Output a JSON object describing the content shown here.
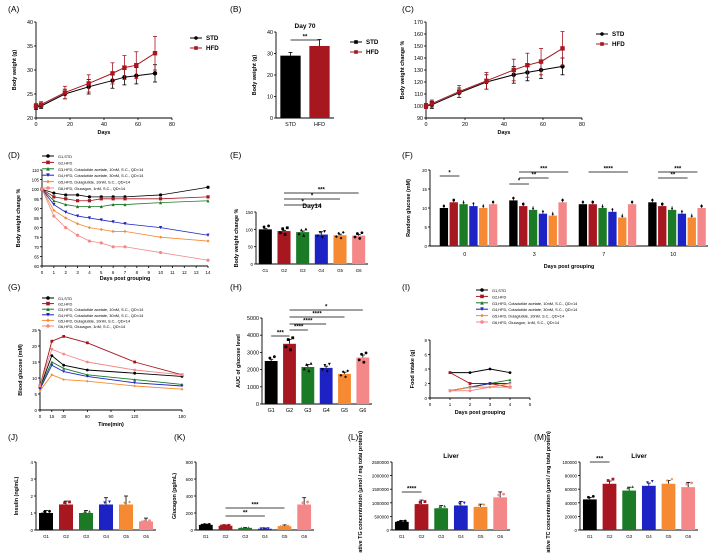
{
  "figure": {
    "panel_letters": [
      "(A)",
      "(B)",
      "(C)",
      "(D)",
      "(E)",
      "(F)",
      "(G)",
      "(H)",
      "(I)",
      "(J)",
      "(K)",
      "(L)",
      "(M)"
    ]
  },
  "colors": {
    "STD": "#000000",
    "HFD": "#a8161f",
    "G1": "#000000",
    "G2": "#a8161f",
    "G3": "#1a7a25",
    "G4": "#1c22c4",
    "G5": "#f58a32",
    "G6": "#f48888"
  },
  "chart_data": [
    {
      "panel": "A",
      "type": "line",
      "xlabel": "Days",
      "ylabel": "Body weight (g)",
      "xlim": [
        0,
        80
      ],
      "ylim": [
        20,
        40
      ],
      "xticks": [
        0,
        20,
        40,
        60,
        80
      ],
      "yticks": [
        20,
        25,
        30,
        35,
        40
      ],
      "legend": [
        "STD",
        "HFD"
      ],
      "series": [
        {
          "name": "STD",
          "x": [
            0,
            3,
            17,
            31,
            45,
            52,
            59,
            70
          ],
          "y": [
            22.3,
            22.5,
            25.0,
            26.5,
            27.8,
            28.5,
            28.8,
            29.3
          ],
          "err": [
            0.5,
            0.5,
            1.0,
            1.5,
            1.6,
            1.6,
            1.7,
            1.8
          ]
        },
        {
          "name": "HFD",
          "x": [
            0,
            3,
            17,
            31,
            45,
            52,
            59,
            70
          ],
          "y": [
            22.5,
            22.8,
            25.3,
            27.2,
            29.3,
            30.5,
            31.0,
            33.5
          ],
          "err": [
            0.5,
            0.6,
            1.3,
            1.8,
            2.2,
            2.5,
            2.8,
            3.5
          ]
        }
      ]
    },
    {
      "panel": "B",
      "type": "bar",
      "title": "Day 70",
      "ylabel": "Body weight (g)",
      "ylim": [
        0,
        40
      ],
      "yticks": [
        0,
        10,
        20,
        30,
        40
      ],
      "categories": [
        "STD",
        "HFD"
      ],
      "values": [
        29,
        33.5
      ],
      "err": [
        1.5,
        3
      ],
      "legend": [
        "STD",
        "HFD"
      ],
      "significance": [
        {
          "pair": [
            "STD",
            "HFD"
          ],
          "label": "**"
        }
      ]
    },
    {
      "panel": "C",
      "type": "line",
      "xlabel": "Days",
      "ylabel": "Body weight change %",
      "xlim": [
        0,
        80
      ],
      "ylim": [
        90,
        170
      ],
      "xticks": [
        0,
        20,
        40,
        60,
        80
      ],
      "yticks": [
        90,
        100,
        110,
        120,
        130,
        140,
        150,
        160,
        170
      ],
      "legend": [
        "STD",
        "HFD"
      ],
      "series": [
        {
          "name": "STD",
          "x": [
            0,
            3,
            17,
            31,
            45,
            52,
            59,
            70
          ],
          "y": [
            100,
            101,
            111,
            120,
            126,
            128,
            130,
            133
          ],
          "err": [
            2,
            3,
            4,
            6,
            7,
            7,
            7,
            7
          ]
        },
        {
          "name": "HFD",
          "x": [
            0,
            3,
            17,
            31,
            45,
            52,
            59,
            70
          ],
          "y": [
            100,
            102,
            112,
            121,
            130,
            134,
            137,
            148
          ],
          "err": [
            2,
            3,
            5,
            7,
            9,
            10,
            11,
            14
          ]
        }
      ]
    },
    {
      "panel": "D",
      "type": "line",
      "xlabel": "Days post grouping",
      "ylabel": "Body weight change %",
      "xlim": [
        0,
        14
      ],
      "ylim": [
        60,
        110
      ],
      "xticks": [
        0,
        1,
        2,
        3,
        4,
        5,
        6,
        7,
        8,
        9,
        10,
        11,
        12,
        13,
        14
      ],
      "yticks": [
        60,
        65,
        70,
        75,
        80,
        85,
        90,
        95,
        100,
        105,
        110
      ],
      "legend": [
        "G1,STD",
        "G2,HFD",
        "G3,HFD, Cotadutide acetate, 10nM, S.C., QD×14",
        "G4,HFD, Cotadutide acetate, 30nM, S.C., QD×14",
        "G5,HFD, Dulaglutide, 10nM, S.C., QD×14",
        "G6,HFD, Glucagon, 1nM, S.C., QD×14"
      ],
      "series": [
        {
          "name": "G1",
          "x": [
            0,
            1,
            2,
            3,
            4,
            5,
            6,
            7,
            10,
            14
          ],
          "y": [
            100,
            98,
            97,
            97,
            96,
            96,
            96,
            96,
            97,
            101
          ]
        },
        {
          "name": "G2",
          "x": [
            0,
            1,
            2,
            3,
            4,
            5,
            6,
            7,
            10,
            14
          ],
          "y": [
            100,
            96,
            95,
            94,
            94,
            95,
            95,
            95,
            95,
            96
          ]
        },
        {
          "name": "G3",
          "x": [
            0,
            1,
            2,
            3,
            4,
            5,
            6,
            7,
            10,
            14
          ],
          "y": [
            100,
            94,
            92,
            91,
            91,
            91,
            92,
            92,
            93,
            94
          ]
        },
        {
          "name": "G4",
          "x": [
            0,
            1,
            2,
            3,
            4,
            5,
            6,
            7,
            10,
            14
          ],
          "y": [
            100,
            92,
            88,
            86,
            85,
            84,
            83,
            82,
            80,
            76
          ]
        },
        {
          "name": "G5",
          "x": [
            0,
            1,
            2,
            3,
            4,
            5,
            6,
            7,
            10,
            14
          ],
          "y": [
            100,
            89,
            85,
            82,
            80,
            79,
            78,
            78,
            75,
            73
          ]
        },
        {
          "name": "G6",
          "x": [
            0,
            1,
            2,
            3,
            4,
            5,
            6,
            7,
            10,
            14
          ],
          "y": [
            100,
            86,
            80,
            76,
            73,
            72,
            70,
            70,
            67,
            63
          ]
        }
      ]
    },
    {
      "panel": "E",
      "type": "bar",
      "title": "Day14",
      "ylabel": "Body weight change %",
      "ylim": [
        0,
        150
      ],
      "yticks": [
        0,
        50,
        100,
        150
      ],
      "categories": [
        "G1",
        "G2",
        "G3",
        "G4",
        "G5",
        "G6"
      ],
      "values": [
        100,
        95,
        92,
        85,
        83,
        82
      ],
      "err": [
        2,
        2,
        3,
        8,
        3,
        3
      ],
      "significance": [
        {
          "pair": [
            "G2",
            "G4"
          ],
          "label": "*"
        },
        {
          "pair": [
            "G2",
            "G5"
          ],
          "label": "*"
        },
        {
          "pair": [
            "G2",
            "G6"
          ],
          "label": "***"
        }
      ]
    },
    {
      "panel": "F",
      "type": "bar",
      "xlabel": "Days post grouping",
      "ylabel": "Random glucose (mM)",
      "ylim": [
        0,
        20
      ],
      "yticks": [
        0,
        5,
        10,
        15,
        20
      ],
      "categories": [
        "0",
        "3",
        "7",
        "10"
      ],
      "series": [
        {
          "name": "G1",
          "values": [
            10,
            12,
            11,
            11.5
          ]
        },
        {
          "name": "G2",
          "values": [
            11.5,
            10.5,
            11,
            10.5
          ]
        },
        {
          "name": "G3",
          "values": [
            11,
            9.5,
            10,
            9.5
          ]
        },
        {
          "name": "G4",
          "values": [
            10.5,
            8.5,
            9,
            8.5
          ]
        },
        {
          "name": "G5",
          "values": [
            10,
            8,
            7.5,
            7.5
          ]
        },
        {
          "name": "G6",
          "values": [
            11,
            11.5,
            11,
            10
          ]
        }
      ],
      "significance": [
        {
          "group": "0",
          "label": "*"
        },
        {
          "group": "3",
          "label": "*"
        },
        {
          "group": "3",
          "label": "**"
        },
        {
          "group": "3",
          "label": "***"
        },
        {
          "group": "7",
          "label": "****"
        },
        {
          "group": "10",
          "label": "**"
        },
        {
          "group": "10",
          "label": "***"
        }
      ]
    },
    {
      "panel": "G",
      "type": "line",
      "xlabel": "Time(min)",
      "ylabel": "Blood glucose (mM)",
      "xlim": [
        0,
        180
      ],
      "ylim": [
        0,
        25
      ],
      "xticks": [
        0,
        15,
        30,
        60,
        90,
        120,
        180
      ],
      "yticks": [
        0,
        5,
        10,
        15,
        20,
        25
      ],
      "legend": [
        "G1,STD",
        "G2,HFD",
        "G3,HFD, Cotadutide acetate, 10nM, S.C., QD×14",
        "G4,HFD, Cotadutide acetate, 30nM, S.C., QD×14",
        "G5,HFD, Dulaglutide, 10nM, S.C., QD×14",
        "G6,HFD, Glucagon, 1nM, S.C., QD×14"
      ],
      "series": [
        {
          "name": "G1",
          "x": [
            0,
            15,
            30,
            60,
            120,
            180
          ],
          "y": [
            7,
            17,
            14,
            12.5,
            11.5,
            10.5
          ]
        },
        {
          "name": "G2",
          "x": [
            0,
            15,
            30,
            60,
            120,
            180
          ],
          "y": [
            7.5,
            21.5,
            23,
            21,
            15,
            11
          ]
        },
        {
          "name": "G3",
          "x": [
            0,
            15,
            30,
            60,
            120,
            180
          ],
          "y": [
            7,
            15,
            13,
            11,
            9.5,
            8
          ]
        },
        {
          "name": "G4",
          "x": [
            0,
            15,
            30,
            60,
            120,
            180
          ],
          "y": [
            6.5,
            14,
            12,
            10.5,
            8.5,
            7.5
          ]
        },
        {
          "name": "G5",
          "x": [
            0,
            15,
            30,
            60,
            120,
            180
          ],
          "y": [
            6,
            11,
            9.5,
            9,
            7.5,
            6.5
          ]
        },
        {
          "name": "G6",
          "x": [
            0,
            15,
            30,
            60,
            120,
            180
          ],
          "y": [
            7.5,
            19,
            17.5,
            15,
            12.5,
            11
          ]
        }
      ]
    },
    {
      "panel": "H",
      "type": "bar",
      "ylabel": "AUC of glucose level",
      "ylim": [
        0,
        5000
      ],
      "yticks": [
        0,
        1000,
        2000,
        3000,
        4000,
        5000
      ],
      "categories": [
        "G1",
        "G2",
        "G3",
        "G4",
        "G5",
        "G6"
      ],
      "values": [
        2500,
        3500,
        2150,
        2100,
        1750,
        2700
      ],
      "err": [
        100,
        250,
        150,
        100,
        100,
        150
      ],
      "significance": [
        {
          "pair": [
            "G1",
            "G2"
          ],
          "label": "***"
        },
        {
          "pair": [
            "G2",
            "G3"
          ],
          "label": "****"
        },
        {
          "pair": [
            "G2",
            "G4"
          ],
          "label": "****"
        },
        {
          "pair": [
            "G2",
            "G5"
          ],
          "label": "****"
        },
        {
          "pair": [
            "G2",
            "G6"
          ],
          "label": "*"
        }
      ]
    },
    {
      "panel": "I",
      "type": "line",
      "xlabel": "Days post grouping",
      "ylabel": "Food intake (g)",
      "xlim": [
        0,
        5
      ],
      "ylim": [
        0,
        8
      ],
      "xticks": [
        0,
        1,
        2,
        3,
        4,
        5
      ],
      "yticks": [
        0,
        2,
        4,
        6,
        8
      ],
      "legend": [
        "G1,STD",
        "G2,HFD",
        "G3,HFD, Cotadutide acetate, 10nM, S.C., QD×14",
        "G4,HFD, Cotadutide acetate, 30nM, S.C., QD×14",
        "G5,HFD, Dulaglutide, 10nM, S.C., QD×14",
        "G6,HFD, Glucagon, 1nM, S.C., QD×14"
      ],
      "series": [
        {
          "name": "G1",
          "x": [
            1,
            2,
            3,
            4
          ],
          "y": [
            3.5,
            3.5,
            4,
            3.5
          ]
        },
        {
          "name": "G2",
          "x": [
            1,
            2,
            3,
            4
          ],
          "y": [
            3.5,
            2,
            2,
            1.5
          ]
        },
        {
          "name": "G3",
          "x": [
            1,
            2,
            3,
            4
          ],
          "y": [
            1,
            1.5,
            2,
            2.5
          ]
        },
        {
          "name": "G4",
          "x": [
            1,
            2,
            3,
            4
          ],
          "y": [
            1,
            1.5,
            2,
            2
          ]
        },
        {
          "name": "G5",
          "x": [
            1,
            2,
            3,
            4
          ],
          "y": [
            1,
            1.5,
            1.5,
            2
          ]
        },
        {
          "name": "G6",
          "x": [
            1,
            2,
            3,
            4
          ],
          "y": [
            1,
            1,
            1.5,
            1.5
          ]
        }
      ]
    },
    {
      "panel": "J",
      "type": "bar",
      "ylabel": "Insulin (ng/mL)",
      "ylim": [
        0,
        4
      ],
      "yticks": [
        0,
        1,
        2,
        3,
        4
      ],
      "categories": [
        "G1",
        "G2",
        "G3",
        "G4",
        "G5",
        "G6"
      ],
      "values": [
        1.0,
        1.5,
        1.0,
        1.5,
        1.5,
        0.5
      ],
      "err": [
        0.15,
        0.2,
        0.15,
        0.4,
        0.5,
        0.2
      ]
    },
    {
      "panel": "K",
      "type": "bar",
      "ylabel": "Glucagon (pg/mL)",
      "ylim": [
        0,
        800
      ],
      "yticks": [
        0,
        200,
        400,
        600,
        800
      ],
      "categories": [
        "G1",
        "G2",
        "G3",
        "G4",
        "G5",
        "G6"
      ],
      "values": [
        60,
        50,
        25,
        15,
        45,
        300
      ],
      "err": [
        10,
        8,
        5,
        5,
        15,
        80
      ],
      "significance": [
        {
          "pair": [
            "G2",
            "G4"
          ],
          "label": "**"
        },
        {
          "pair": [
            "G2",
            "G5"
          ],
          "label": "***"
        }
      ]
    },
    {
      "panel": "L",
      "type": "bar",
      "title": "Liver",
      "ylabel": "Relative TG concentration (μmol / mg total protein)",
      "ylim": [
        0,
        2500000
      ],
      "yticks": [
        0,
        500000,
        1000000,
        1500000,
        2000000,
        2500000
      ],
      "categories": [
        "G1",
        "G2",
        "G3",
        "G4",
        "G5",
        "G6"
      ],
      "values": [
        300000,
        950000,
        800000,
        900000,
        850000,
        1200000
      ],
      "err": [
        50000,
        150000,
        100000,
        150000,
        100000,
        200000
      ],
      "significance": [
        {
          "pair": [
            "G1",
            "G2"
          ],
          "label": "****"
        }
      ]
    },
    {
      "panel": "M",
      "type": "bar",
      "title": "Liver",
      "ylabel": "Relative TC concentration (μmol / mg total protein)",
      "ylim": [
        0,
        100000
      ],
      "yticks": [
        0,
        20000,
        40000,
        60000,
        80000,
        100000
      ],
      "categories": [
        "G1",
        "G2",
        "G3",
        "G4",
        "G5",
        "G6"
      ],
      "values": [
        45000,
        68000,
        58000,
        65000,
        68000,
        63000
      ],
      "err": [
        3000,
        4000,
        5000,
        4000,
        5000,
        7000
      ],
      "significance": [
        {
          "pair": [
            "G1",
            "G2"
          ],
          "label": "***"
        }
      ]
    }
  ]
}
